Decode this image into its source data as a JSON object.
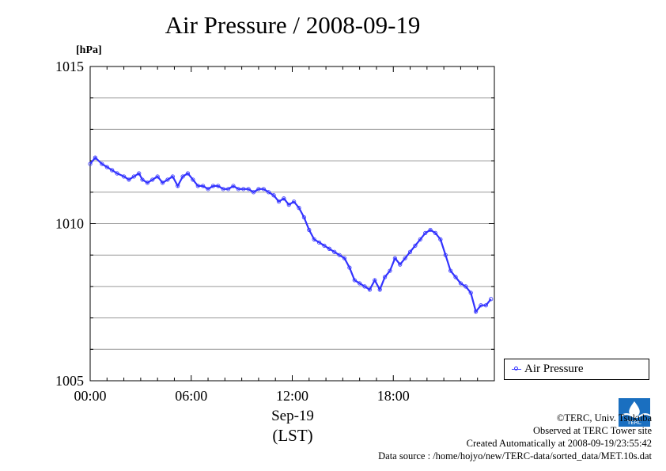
{
  "chart_data": {
    "type": "line",
    "title": "Air Pressure / 2008-09-19",
    "ylabel": "[hPa]",
    "xlabel_date": "Sep-19",
    "xlabel_tz": "(LST)",
    "ylim": [
      1005,
      1015
    ],
    "xlim": [
      0,
      24
    ],
    "yticks": [
      1005,
      1010,
      1015
    ],
    "ytick_labels": [
      "1005",
      "1010",
      "1015"
    ],
    "xticks": [
      0,
      6,
      12,
      18
    ],
    "xtick_labels": [
      "00:00",
      "06:00",
      "12:00",
      "18:00"
    ],
    "grid": true,
    "legend_position": "right",
    "series": [
      {
        "name": "Air Pressure",
        "color": "#3333ff",
        "x": [
          0.0,
          0.3,
          0.7,
          1.0,
          1.3,
          1.6,
          2.0,
          2.3,
          2.6,
          2.9,
          3.1,
          3.4,
          3.7,
          4.0,
          4.3,
          4.6,
          4.9,
          5.2,
          5.5,
          5.8,
          6.1,
          6.4,
          6.7,
          7.0,
          7.3,
          7.6,
          7.9,
          8.2,
          8.5,
          8.8,
          9.1,
          9.4,
          9.7,
          10.0,
          10.3,
          10.6,
          10.9,
          11.2,
          11.5,
          11.8,
          12.1,
          12.4,
          12.7,
          13.0,
          13.3,
          13.6,
          13.9,
          14.2,
          14.5,
          14.8,
          15.1,
          15.4,
          15.7,
          16.0,
          16.3,
          16.6,
          16.9,
          17.2,
          17.5,
          17.8,
          18.1,
          18.4,
          18.7,
          19.0,
          19.3,
          19.6,
          19.9,
          20.2,
          20.5,
          20.8,
          21.1,
          21.4,
          21.7,
          22.0,
          22.3,
          22.6,
          22.9,
          23.2,
          23.5,
          23.8
        ],
        "values": [
          1011.9,
          1012.1,
          1011.9,
          1011.8,
          1011.7,
          1011.6,
          1011.5,
          1011.4,
          1011.5,
          1011.6,
          1011.4,
          1011.3,
          1011.4,
          1011.5,
          1011.3,
          1011.4,
          1011.5,
          1011.2,
          1011.5,
          1011.6,
          1011.4,
          1011.2,
          1011.2,
          1011.1,
          1011.2,
          1011.2,
          1011.1,
          1011.1,
          1011.2,
          1011.1,
          1011.1,
          1011.1,
          1011.0,
          1011.1,
          1011.1,
          1011.0,
          1010.9,
          1010.7,
          1010.8,
          1010.6,
          1010.7,
          1010.5,
          1010.2,
          1009.8,
          1009.5,
          1009.4,
          1009.3,
          1009.2,
          1009.1,
          1009.0,
          1008.9,
          1008.6,
          1008.2,
          1008.1,
          1008.0,
          1007.9,
          1008.2,
          1007.9,
          1008.3,
          1008.5,
          1008.9,
          1008.7,
          1008.9,
          1009.1,
          1009.3,
          1009.5,
          1009.7,
          1009.8,
          1009.7,
          1009.5,
          1009.0,
          1008.5,
          1008.3,
          1008.1,
          1008.0,
          1007.8,
          1007.2,
          1007.4,
          1007.4,
          1007.6
        ]
      }
    ]
  },
  "footer": {
    "copyright": "©TERC, Univ. Tsukuba",
    "observed": "Observed at TERC Tower site",
    "created": "Created Automatically at 2008-09-19/23:55:42",
    "source": "Data source : /home/hojyo/new/TERC-data/sorted_data/MET.10s.dat",
    "logo_text": "TERC"
  }
}
